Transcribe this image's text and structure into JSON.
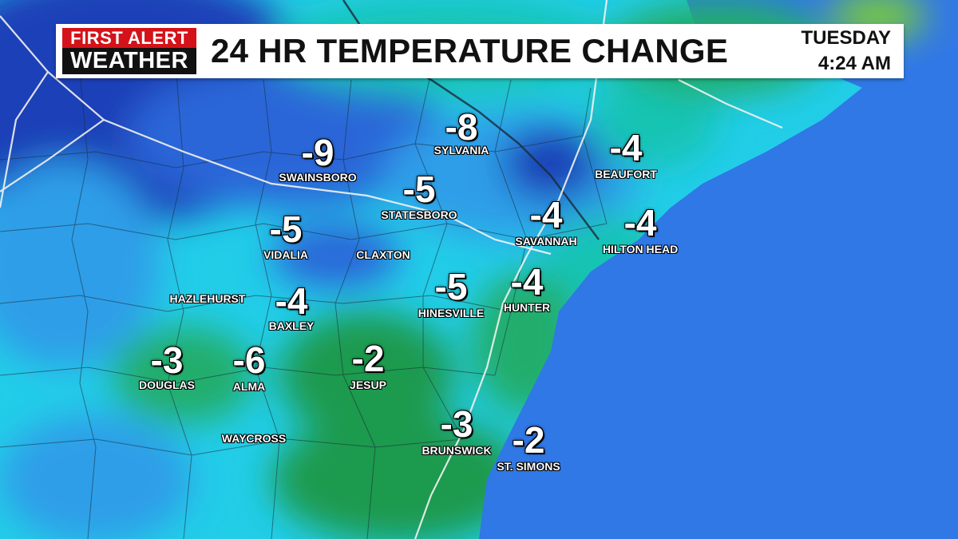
{
  "header": {
    "logo_top": "FIRST ALERT",
    "logo_bottom": "WEATHER",
    "title": "24 HR TEMPERATURE CHANGE",
    "day": "TUESDAY",
    "time": "4:24 AM"
  },
  "colors": {
    "ocean": "#2a6fe0",
    "cold_deep": "#1e3fb8",
    "cold": "#2a66d8",
    "cool": "#2e9ee8",
    "mild": "#22cde8",
    "light": "#18c4b4",
    "warmish": "#20ad6c",
    "green": "#1f9a4e",
    "logo_red": "#d4121a"
  },
  "locations": [
    {
      "id": "swainsboro",
      "city": "SWAINSBORO",
      "value": "-9"
    },
    {
      "id": "sylvania",
      "city": "SYLVANIA",
      "value": "-8"
    },
    {
      "id": "statesboro",
      "city": "STATESBORO",
      "value": "-5"
    },
    {
      "id": "beaufort",
      "city": "BEAUFORT",
      "value": "-4"
    },
    {
      "id": "savannah",
      "city": "SAVANNAH",
      "value": "-4"
    },
    {
      "id": "hilton-head",
      "city": "HILTON HEAD",
      "value": "-4"
    },
    {
      "id": "vidalia",
      "city": "VIDALIA",
      "value": "-5"
    },
    {
      "id": "claxton",
      "city": "CLAXTON",
      "value": ""
    },
    {
      "id": "hinesville",
      "city": "HINESVILLE",
      "value": "-5"
    },
    {
      "id": "hunter",
      "city": "HUNTER",
      "value": "-4"
    },
    {
      "id": "hazlehurst",
      "city": "HAZLEHURST",
      "value": ""
    },
    {
      "id": "baxley",
      "city": "BAXLEY",
      "value": "-4"
    },
    {
      "id": "douglas",
      "city": "DOUGLAS",
      "value": "-3"
    },
    {
      "id": "alma",
      "city": "ALMA",
      "value": "-6"
    },
    {
      "id": "jesup",
      "city": "JESUP",
      "value": "-2"
    },
    {
      "id": "waycross",
      "city": "WAYCROSS",
      "value": ""
    },
    {
      "id": "brunswick",
      "city": "BRUNSWICK",
      "value": "-3"
    },
    {
      "id": "st-simons",
      "city": "ST. SIMONS",
      "value": "-2"
    }
  ]
}
